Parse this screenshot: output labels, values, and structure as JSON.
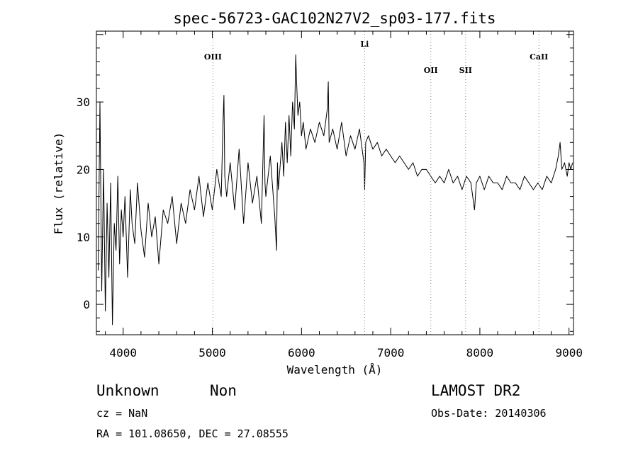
{
  "chart_data": {
    "type": "line",
    "title": "spec-56723-GAC102N27V2_sp03-177.fits",
    "xlabel": "Wavelength (Å)",
    "ylabel": "Flux (relative)",
    "xlim": [
      3700,
      9050
    ],
    "ylim": [
      -4.5,
      40.5
    ],
    "xticks": [
      4000,
      5000,
      6000,
      7000,
      8000,
      9000
    ],
    "yticks": [
      0,
      10,
      20,
      30
    ],
    "grid": false,
    "line_color": "#000000",
    "annotation_line_color": "#888888",
    "spectral_lines": [
      {
        "label": "OIII",
        "wavelength": 5007,
        "label_flux": 36.3
      },
      {
        "label": "Li",
        "wavelength": 6708,
        "label_flux": 38.2
      },
      {
        "label": "OII",
        "wavelength": 7450,
        "label_flux": 34.3
      },
      {
        "label": "SII",
        "wavelength": 7840,
        "label_flux": 34.3
      },
      {
        "label": "CaII",
        "wavelength": 8662,
        "label_flux": 36.3
      }
    ],
    "series": [
      {
        "x": [
          3720,
          3740,
          3760,
          3780,
          3800,
          3820,
          3840,
          3860,
          3880,
          3900,
          3920,
          3940,
          3960,
          3980,
          4000,
          4020,
          4050,
          4080,
          4100,
          4130,
          4160,
          4200,
          4240,
          4280,
          4320,
          4360,
          4400,
          4450,
          4500,
          4550,
          4600,
          4650,
          4700,
          4750,
          4800,
          4850,
          4900,
          4950,
          5000,
          5050,
          5100,
          5120,
          5130,
          5140,
          5160,
          5200,
          5250,
          5300,
          5350,
          5400,
          5450,
          5500,
          5550,
          5580,
          5590,
          5600,
          5650,
          5700,
          5720,
          5730,
          5740,
          5780,
          5800,
          5820,
          5840,
          5860,
          5880,
          5900,
          5920,
          5935,
          5945,
          5960,
          5980,
          6000,
          6020,
          6050,
          6100,
          6150,
          6200,
          6250,
          6290,
          6300,
          6310,
          6350,
          6400,
          6450,
          6500,
          6550,
          6600,
          6650,
          6700,
          6708,
          6720,
          6750,
          6800,
          6850,
          6900,
          6950,
          7000,
          7050,
          7100,
          7150,
          7200,
          7250,
          7300,
          7350,
          7400,
          7450,
          7500,
          7550,
          7600,
          7650,
          7700,
          7750,
          7800,
          7850,
          7900,
          7940,
          7960,
          8000,
          8050,
          8100,
          8150,
          8200,
          8250,
          8300,
          8350,
          8400,
          8450,
          8500,
          8550,
          8600,
          8650,
          8700,
          8750,
          8800,
          8850,
          8880,
          8900,
          8920,
          8950,
          8980,
          9000,
          9020,
          9040
        ],
        "y": [
          5,
          30,
          2,
          20,
          -1,
          15,
          4,
          18,
          -3,
          12,
          8,
          19,
          6,
          14,
          10,
          16,
          4,
          17,
          12,
          9,
          18,
          11,
          7,
          15,
          10,
          13,
          6,
          14,
          12,
          16,
          9,
          15,
          12,
          17,
          14,
          19,
          13,
          18,
          14,
          20,
          16,
          27,
          31,
          19,
          16,
          21,
          14,
          23,
          12,
          21,
          15,
          19,
          12,
          28,
          18,
          16,
          22,
          13,
          8,
          21,
          17,
          24,
          19,
          27,
          21,
          28,
          22,
          30,
          26,
          37,
          33,
          28,
          30,
          25,
          27,
          23,
          26,
          24,
          27,
          25,
          29,
          33,
          24,
          26,
          23,
          27,
          22,
          25,
          23,
          26,
          21,
          17,
          24,
          25,
          23,
          24,
          22,
          23,
          22,
          21,
          22,
          21,
          20,
          21,
          19,
          20,
          20,
          19,
          18,
          19,
          18,
          20,
          18,
          19,
          17,
          19,
          18,
          14,
          18,
          19,
          17,
          19,
          18,
          18,
          17,
          19,
          18,
          18,
          17,
          19,
          18,
          17,
          18,
          17,
          19,
          18,
          20,
          22,
          24,
          20,
          21,
          19,
          21,
          20,
          21
        ]
      }
    ]
  },
  "info": {
    "class": "Unknown",
    "subclass": "Non",
    "cz": "cz = NaN",
    "coords": "RA = 101.08650, DEC =  27.08555",
    "survey": "LAMOST DR2",
    "obs_date": "Obs-Date: 20140306"
  }
}
